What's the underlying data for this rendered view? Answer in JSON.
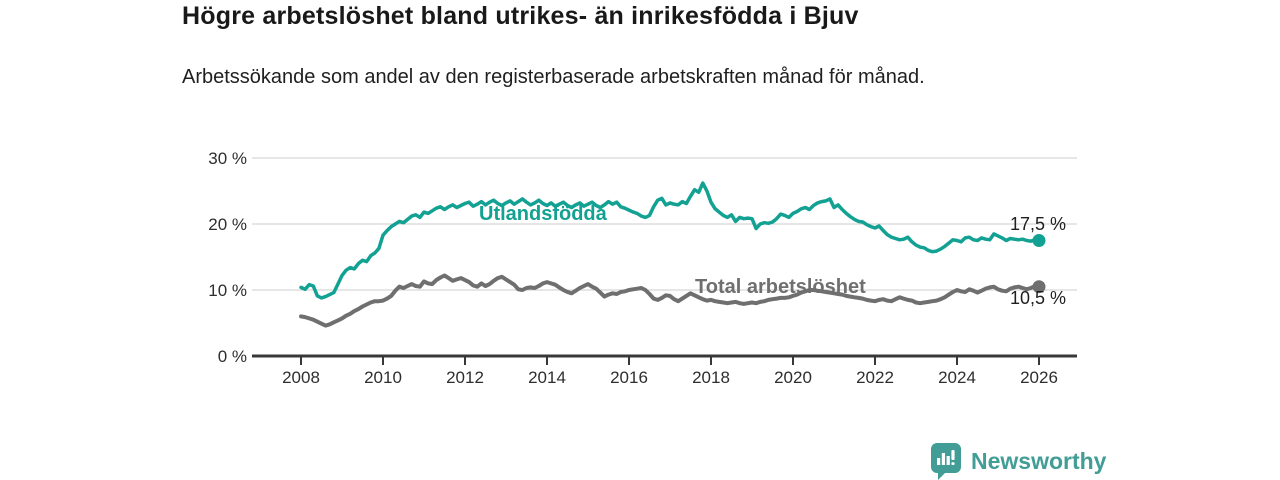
{
  "header": {
    "title": "Högre arbetslöshet bland utrikes- än inrikesfödda i Bjuv",
    "subtitle": "Arbetssökande som andel av den registerbaserade arbetskraften månad för månad."
  },
  "chart_data": {
    "type": "line",
    "title": "Högre arbetslöshet bland utrikes- än inrikesfödda i Bjuv",
    "unit": "%",
    "x_start": 2008.0,
    "x_step": 0.1,
    "x_ticks": [
      2008,
      2010,
      2012,
      2014,
      2016,
      2018,
      2020,
      2022,
      2024,
      2026
    ],
    "y_ticks": [
      0,
      10,
      20,
      30
    ],
    "y_tick_suffix": " %",
    "ylim": [
      0,
      30
    ],
    "grid": "horizontal",
    "legend_position": "inline",
    "series": [
      {
        "id": "utlandsfodda",
        "name": "Utlandsfödda",
        "color": "#12a192",
        "last_value": 17.5,
        "last_value_label": "17,5 %",
        "inline_label": {
          "x": 2012.35,
          "y": 21.6
        },
        "values": [
          10.4,
          10.1,
          10.8,
          10.6,
          9.1,
          8.8,
          9.0,
          9.3,
          9.6,
          10.9,
          12.2,
          13.0,
          13.4,
          13.2,
          14.0,
          14.5,
          14.3,
          15.2,
          15.6,
          16.3,
          18.3,
          19.0,
          19.6,
          20.0,
          20.4,
          20.2,
          20.7,
          21.2,
          21.4,
          21.0,
          21.8,
          21.6,
          22.0,
          22.4,
          22.6,
          22.2,
          22.6,
          22.9,
          22.5,
          22.8,
          23.1,
          23.3,
          22.7,
          23.0,
          23.4,
          22.9,
          23.3,
          23.6,
          23.1,
          22.8,
          23.2,
          23.5,
          23.0,
          23.4,
          23.8,
          23.3,
          22.9,
          23.2,
          23.6,
          23.1,
          22.8,
          23.2,
          22.7,
          23.0,
          23.3,
          22.8,
          22.5,
          22.9,
          23.2,
          22.7,
          23.0,
          23.3,
          22.8,
          22.5,
          22.9,
          23.4,
          23.0,
          23.3,
          22.6,
          22.4,
          22.1,
          21.8,
          21.6,
          21.2,
          21.0,
          21.3,
          22.6,
          23.6,
          23.9,
          22.9,
          23.2,
          23.0,
          22.9,
          23.4,
          23.1,
          24.2,
          25.2,
          24.8,
          26.2,
          25.0,
          23.3,
          22.3,
          21.8,
          21.3,
          21.0,
          21.4,
          20.4,
          21.0,
          20.8,
          20.9,
          20.8,
          19.3,
          20.0,
          20.2,
          20.1,
          20.3,
          20.8,
          21.5,
          21.3,
          21.0,
          21.6,
          21.9,
          22.3,
          22.5,
          22.2,
          22.8,
          23.2,
          23.4,
          23.5,
          23.8,
          22.5,
          22.9,
          22.2,
          21.6,
          21.1,
          20.7,
          20.4,
          20.3,
          19.9,
          19.6,
          19.4,
          19.7,
          19.0,
          18.4,
          18.0,
          17.8,
          17.6,
          17.7,
          18.0,
          17.3,
          16.8,
          16.5,
          16.4,
          16.0,
          15.8,
          15.9,
          16.2,
          16.6,
          17.1,
          17.6,
          17.5,
          17.3,
          17.9,
          18.0,
          17.6,
          17.5,
          17.9,
          17.7,
          17.6,
          18.5,
          18.2,
          17.9,
          17.5,
          17.8,
          17.7,
          17.6,
          17.7,
          17.5,
          17.4,
          17.6,
          17.5
        ]
      },
      {
        "id": "total-arbetsloshet",
        "name": "Total arbetslöshet",
        "color": "#6f6f6f",
        "last_value": 10.5,
        "last_value_label": "10,5 %",
        "inline_label": {
          "x": 2017.6,
          "y": 10.6
        },
        "values": [
          6.0,
          5.9,
          5.7,
          5.5,
          5.2,
          4.9,
          4.6,
          4.8,
          5.1,
          5.4,
          5.7,
          6.1,
          6.4,
          6.8,
          7.1,
          7.5,
          7.8,
          8.1,
          8.3,
          8.3,
          8.4,
          8.7,
          9.1,
          9.9,
          10.5,
          10.3,
          10.6,
          10.9,
          10.6,
          10.5,
          11.3,
          11.0,
          10.9,
          11.5,
          11.9,
          12.2,
          11.8,
          11.4,
          11.6,
          11.8,
          11.5,
          11.2,
          10.7,
          10.5,
          11.0,
          10.6,
          10.9,
          11.4,
          11.8,
          12.0,
          11.6,
          11.2,
          10.8,
          10.1,
          10.0,
          10.3,
          10.4,
          10.3,
          10.6,
          11.0,
          11.2,
          11.0,
          10.8,
          10.4,
          10.0,
          9.7,
          9.5,
          9.9,
          10.3,
          10.6,
          10.9,
          10.5,
          10.2,
          9.6,
          9.0,
          9.3,
          9.5,
          9.4,
          9.7,
          9.8,
          10.0,
          10.1,
          10.2,
          10.3,
          10.0,
          9.4,
          8.7,
          8.5,
          8.8,
          9.2,
          9.1,
          8.6,
          8.3,
          8.7,
          9.1,
          9.5,
          9.2,
          8.9,
          8.6,
          8.4,
          8.5,
          8.3,
          8.2,
          8.1,
          8.0,
          8.1,
          8.2,
          8.0,
          7.9,
          8.0,
          8.1,
          8.0,
          8.2,
          8.3,
          8.5,
          8.6,
          8.7,
          8.8,
          8.8,
          8.9,
          9.1,
          9.3,
          9.6,
          9.8,
          10.0,
          10.0,
          9.9,
          9.8,
          9.7,
          9.6,
          9.5,
          9.4,
          9.3,
          9.1,
          9.0,
          8.9,
          8.8,
          8.7,
          8.5,
          8.4,
          8.3,
          8.5,
          8.6,
          8.4,
          8.3,
          8.6,
          8.9,
          8.7,
          8.5,
          8.4,
          8.1,
          8.0,
          8.1,
          8.2,
          8.3,
          8.4,
          8.6,
          8.9,
          9.3,
          9.7,
          10.0,
          9.8,
          9.7,
          10.1,
          9.9,
          9.6,
          9.9,
          10.2,
          10.4,
          10.5,
          10.1,
          9.9,
          9.8,
          10.2,
          10.4,
          10.5,
          10.3,
          10.1,
          10.3,
          10.6,
          10.5
        ]
      }
    ]
  },
  "footer": {
    "brand": "Newsworthy",
    "brand_color": "#419d95"
  }
}
